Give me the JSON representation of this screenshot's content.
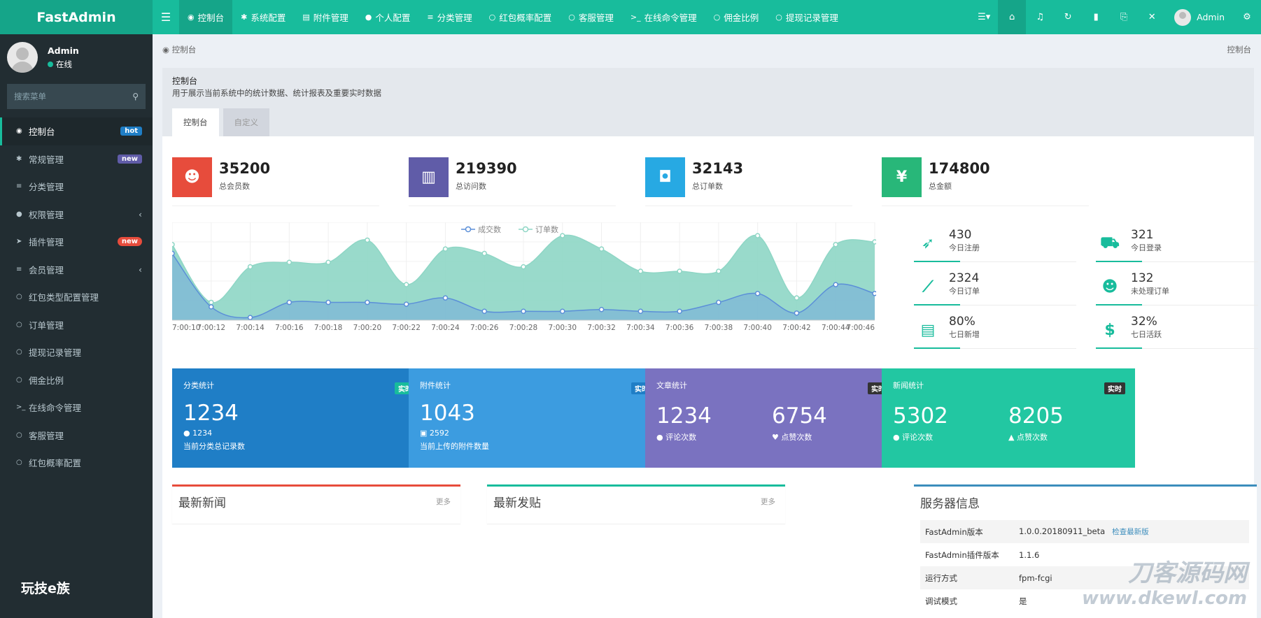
{
  "app": {
    "logo": "FastAdmin"
  },
  "topnav": [
    {
      "label": "控制台",
      "icon": "dashboard-icon"
    },
    {
      "label": "系统配置",
      "icon": "cogs-icon"
    },
    {
      "label": "附件管理",
      "icon": "file-image-icon"
    },
    {
      "label": "个人配置",
      "icon": "user-icon"
    },
    {
      "label": "分类管理",
      "icon": "list-icon"
    },
    {
      "label": "红包概率配置",
      "icon": "circle-icon"
    },
    {
      "label": "客服管理",
      "icon": "circle-icon"
    },
    {
      "label": "在线命令管理",
      "icon": "terminal-icon"
    },
    {
      "label": "佣金比例",
      "icon": "circle-icon"
    },
    {
      "label": "提现记录管理",
      "icon": "circle-icon"
    }
  ],
  "user": {
    "name": "Admin",
    "status": "在线"
  },
  "search": {
    "placeholder": "搜索菜单"
  },
  "sidebar": [
    {
      "label": "控制台",
      "icon": "dashboard-icon",
      "badge": "hot"
    },
    {
      "label": "常规管理",
      "icon": "cogs-icon",
      "badge": "new"
    },
    {
      "label": "分类管理",
      "icon": "list-icon"
    },
    {
      "label": "权限管理",
      "icon": "group-icon",
      "arrow": "‹"
    },
    {
      "label": "插件管理",
      "icon": "rocket-icon",
      "badge": "new"
    },
    {
      "label": "会员管理",
      "icon": "list-icon",
      "arrow": "‹"
    },
    {
      "label": "红包类型配置管理",
      "icon": "circle-icon"
    },
    {
      "label": "订单管理",
      "icon": "circle-icon"
    },
    {
      "label": "提现记录管理",
      "icon": "circle-icon"
    },
    {
      "label": "佣金比例",
      "icon": "circle-icon"
    },
    {
      "label": "在线命令管理",
      "icon": "terminal-icon"
    },
    {
      "label": "客服管理",
      "icon": "circle-icon"
    },
    {
      "label": "红包概率配置",
      "icon": "circle-icon"
    }
  ],
  "watermark_left": "玩技e族",
  "breadcrumb": {
    "left": "控制台",
    "right": "控制台"
  },
  "page": {
    "title": "控制台",
    "desc": "用于展示当前系统中的统计数据、统计报表及重要实时数据",
    "tabs": [
      "控制台",
      "自定义"
    ]
  },
  "stats": [
    {
      "value": "35200",
      "label": "总会员数",
      "color": "#e74c3c",
      "icon": "users-icon"
    },
    {
      "value": "219390",
      "label": "总访问数",
      "color": "#605ca8",
      "icon": "book-icon"
    },
    {
      "value": "32143",
      "label": "总订单数",
      "color": "#27a9e3",
      "icon": "shopping-bag-icon"
    },
    {
      "value": "174800",
      "label": "总金额",
      "color": "#28b779",
      "icon": "yen-icon"
    }
  ],
  "kpis": [
    {
      "value": "430",
      "label": "今日注册",
      "icon": "rocket-icon"
    },
    {
      "value": "321",
      "label": "今日登录",
      "icon": "cart-icon"
    },
    {
      "value": "2324",
      "label": "今日订单",
      "icon": "line-chart-icon"
    },
    {
      "value": "132",
      "label": "未处理订单",
      "icon": "users-icon"
    },
    {
      "value": "80%",
      "label": "七日新增",
      "icon": "list-alt-icon"
    },
    {
      "value": "32%",
      "label": "七日活跃",
      "icon": "dollar-icon"
    }
  ],
  "chart_data": {
    "type": "area",
    "x": [
      "7:00:10",
      "7:00:12",
      "7:00:14",
      "7:00:16",
      "7:00:18",
      "7:00:20",
      "7:00:22",
      "7:00:24",
      "7:00:26",
      "7:00:28",
      "7:00:30",
      "7:00:32",
      "7:00:34",
      "7:00:36",
      "7:00:38",
      "7:00:40",
      "7:00:42",
      "7:00:44",
      "7:00:46"
    ],
    "series": [
      {
        "name": "成交数",
        "color": "#6a9ee0",
        "values": [
          75,
          15,
          3,
          20,
          20,
          20,
          18,
          25,
          10,
          10,
          10,
          12,
          10,
          10,
          20,
          30,
          8,
          40,
          30
        ]
      },
      {
        "name": "订单数",
        "color": "#8ed6c5",
        "values": [
          85,
          20,
          60,
          65,
          65,
          90,
          40,
          80,
          75,
          60,
          95,
          80,
          55,
          55,
          55,
          95,
          25,
          85,
          88
        ]
      }
    ],
    "ylim": [
      0,
      110
    ],
    "grid": true,
    "legend": "top-center"
  },
  "cards": [
    {
      "title": "分类统计",
      "tag": "实时",
      "value": "1234",
      "sub": "1234",
      "note": "当前分类总记录数",
      "color": "#1f7ec6",
      "tagcolor": "#18bc9c"
    },
    {
      "title": "附件统计",
      "tag": "实时",
      "value": "1043",
      "sub": "2592",
      "note": "当前上传的附件数量",
      "color": "#3c9ce0",
      "tagcolor": "#1f7ec6"
    },
    {
      "title": "文章统计",
      "tag": "实时",
      "v1": "1234",
      "l1": "评论次数",
      "v2": "6754",
      "l2": "点赞次数",
      "color": "#7a72c0",
      "tagcolor": "#333"
    },
    {
      "title": "新闻统计",
      "tag": "实时",
      "v1": "5302",
      "l1": "评论次数",
      "v2": "8205",
      "l2": "点赞次数",
      "color": "#22c7a2",
      "tagcolor": "#333"
    }
  ],
  "news": {
    "title": "最新新闻",
    "more": "更多"
  },
  "posts": {
    "title": "最新发贴",
    "more": "更多"
  },
  "server": {
    "title": "服务器信息",
    "rows": [
      {
        "k": "FastAdmin版本",
        "v": "1.0.0.20180911_beta",
        "link": "检查最新版"
      },
      {
        "k": "FastAdmin插件版本",
        "v": "1.1.6"
      },
      {
        "k": "运行方式",
        "v": "fpm-fcgi"
      },
      {
        "k": "调试模式",
        "v": "是"
      }
    ]
  },
  "watermark_right": {
    "cn": "刀客源码网",
    "url": "www.dkewl.com"
  }
}
